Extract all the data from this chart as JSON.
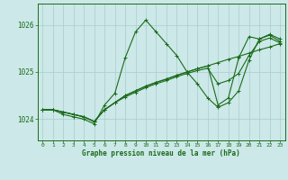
{
  "title": "Graphe pression niveau de la mer (hPa)",
  "background_color": "#cce8e8",
  "grid_color": "#aacccc",
  "line_color": "#1a6b1a",
  "xlim": [
    -0.5,
    23.5
  ],
  "ylim": [
    1023.55,
    1026.45
  ],
  "yticks": [
    1024,
    1025,
    1026
  ],
  "xticks": [
    0,
    1,
    2,
    3,
    4,
    5,
    6,
    7,
    8,
    9,
    10,
    11,
    12,
    13,
    14,
    15,
    16,
    17,
    18,
    19,
    20,
    21,
    22,
    23
  ],
  "series": [
    [
      1024.2,
      1024.2,
      1024.1,
      1024.05,
      1024.0,
      1023.9,
      1024.3,
      1024.55,
      1025.3,
      1025.85,
      1026.1,
      1025.85,
      1025.6,
      1025.35,
      1025.0,
      1024.75,
      1024.45,
      1024.25,
      1024.35,
      1024.6,
      1025.25,
      1025.7,
      1025.8,
      1025.7
    ],
    [
      1024.2,
      1024.2,
      1024.15,
      1024.1,
      1024.05,
      1023.95,
      1024.2,
      1024.35,
      1024.5,
      1024.6,
      1024.7,
      1024.78,
      1024.85,
      1024.93,
      1025.0,
      1025.07,
      1025.13,
      1025.2,
      1025.27,
      1025.33,
      1025.4,
      1025.47,
      1025.53,
      1025.6
    ],
    [
      1024.2,
      1024.2,
      1024.15,
      1024.1,
      1024.05,
      1023.95,
      1024.2,
      1024.35,
      1024.5,
      1024.6,
      1024.7,
      1024.78,
      1024.85,
      1024.93,
      1025.0,
      1025.07,
      1025.13,
      1024.3,
      1024.45,
      1025.3,
      1025.75,
      1025.7,
      1025.78,
      1025.65
    ],
    [
      1024.2,
      1024.2,
      1024.15,
      1024.1,
      1024.05,
      1023.95,
      1024.2,
      1024.35,
      1024.47,
      1024.57,
      1024.67,
      1024.75,
      1024.82,
      1024.9,
      1024.97,
      1025.03,
      1025.08,
      1024.75,
      1024.82,
      1024.97,
      1025.35,
      1025.65,
      1025.72,
      1025.62
    ]
  ]
}
